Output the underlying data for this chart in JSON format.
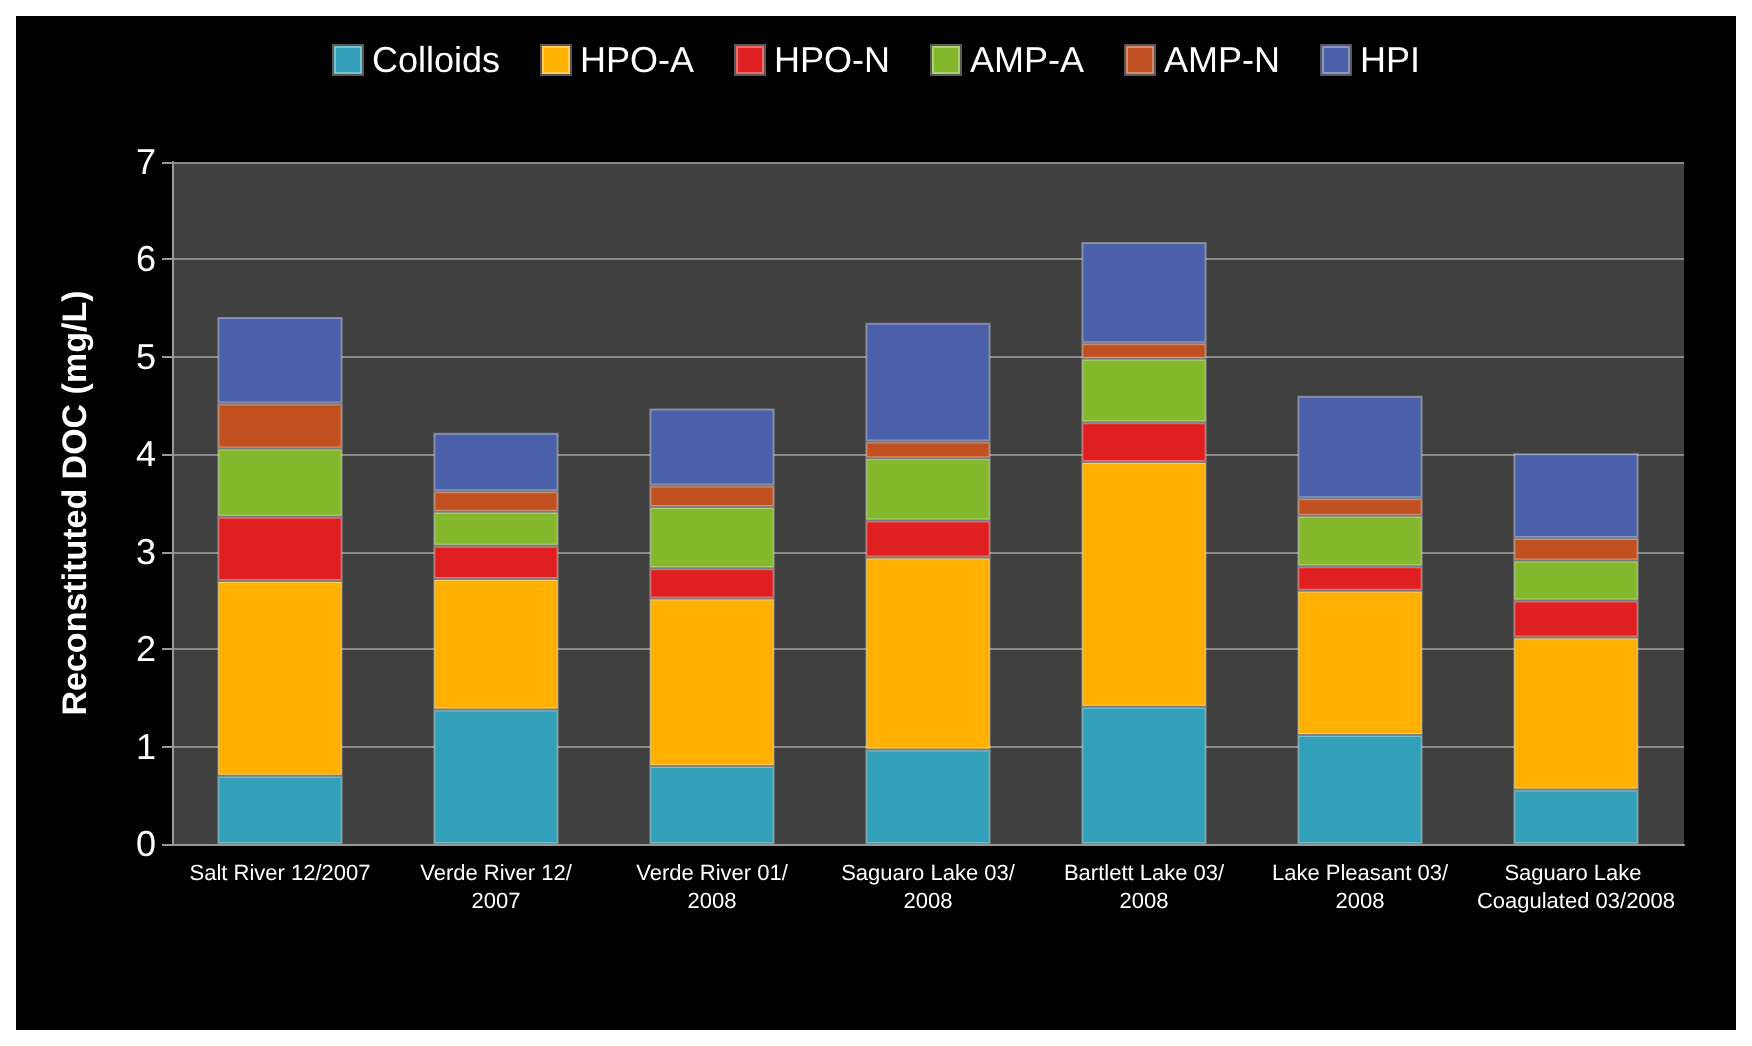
{
  "chart_data": {
    "type": "bar",
    "stacked": true,
    "ylabel": "Reconstituted DOC (mg/L)",
    "categories": [
      "Salt River 12/2007",
      "Verde River 12/2007",
      "Verde River 01/2008",
      "Saguaro Lake 03/2008",
      "Bartlett Lake 03/2008",
      "Lake Pleasant 03/2008",
      "Saguaro Lake Coagulated 03/2008"
    ],
    "series": [
      {
        "name": "Colloids",
        "color": "#31a0b8",
        "values": [
          0.7,
          1.38,
          0.8,
          0.97,
          1.41,
          1.12,
          0.56
        ]
      },
      {
        "name": "HPO-A",
        "color": "#ffb000",
        "values": [
          2.0,
          1.34,
          1.72,
          1.97,
          2.51,
          1.48,
          1.56
        ]
      },
      {
        "name": "HPO-N",
        "color": "#e02020",
        "values": [
          0.66,
          0.34,
          0.31,
          0.38,
          0.41,
          0.25,
          0.38
        ]
      },
      {
        "name": "AMP-A",
        "color": "#84b82c",
        "values": [
          0.7,
          0.35,
          0.63,
          0.64,
          0.65,
          0.52,
          0.41
        ]
      },
      {
        "name": "AMP-N",
        "color": "#c05020",
        "values": [
          0.46,
          0.21,
          0.22,
          0.17,
          0.16,
          0.18,
          0.23
        ]
      },
      {
        "name": "HPI",
        "color": "#4a60a8",
        "values": [
          0.89,
          0.6,
          0.79,
          1.22,
          1.04,
          1.05,
          0.87
        ]
      }
    ],
    "ylim": [
      0,
      7
    ],
    "yticks": [
      0,
      1,
      2,
      3,
      4,
      5,
      6,
      7
    ],
    "grid": "y",
    "legend": "top"
  }
}
